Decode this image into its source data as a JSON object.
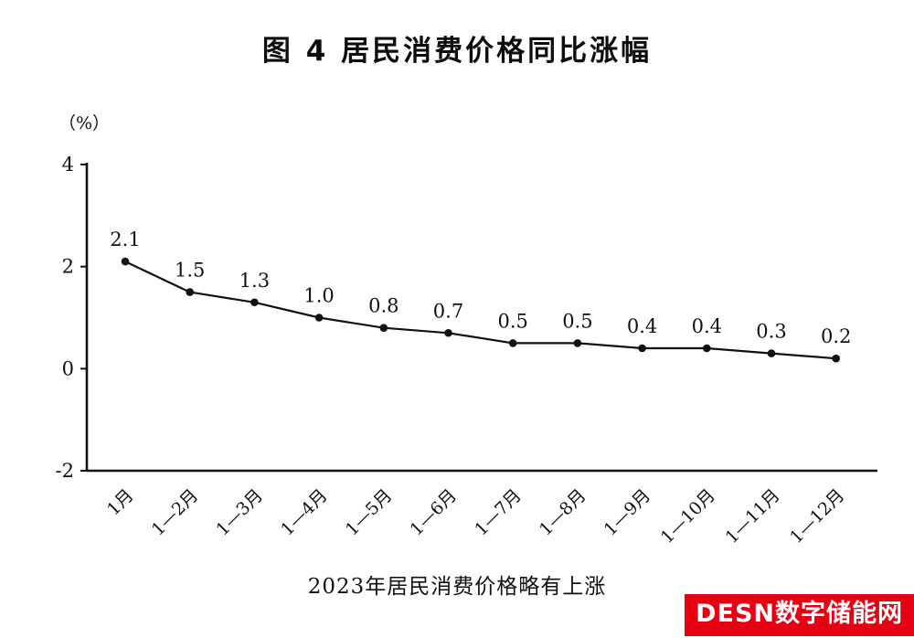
{
  "caption": "2023年居民消费价格略有上涨",
  "watermark": "DESN数字储能网",
  "colors": {
    "line": "#111111",
    "watermark_bg": "#e60012",
    "watermark_text": "#ffffff"
  },
  "chart_data": {
    "type": "line",
    "title": "图 4  居民消费价格同比涨幅",
    "xlabel": "",
    "ylabel": "（%）",
    "categories": [
      "1月",
      "1—2月",
      "1—3月",
      "1—4月",
      "1—5月",
      "1—6月",
      "1—7月",
      "1—8月",
      "1—9月",
      "1—10月",
      "1—11月",
      "1—12月"
    ],
    "values": [
      2.1,
      1.5,
      1.3,
      1.0,
      0.8,
      0.7,
      0.5,
      0.5,
      0.4,
      0.4,
      0.3,
      0.2
    ],
    "ylim": [
      -2,
      4
    ],
    "yticks": [
      4,
      2,
      0,
      -2
    ],
    "grid": false,
    "legend": "none",
    "marker": "dot",
    "line_color": "#111111"
  }
}
